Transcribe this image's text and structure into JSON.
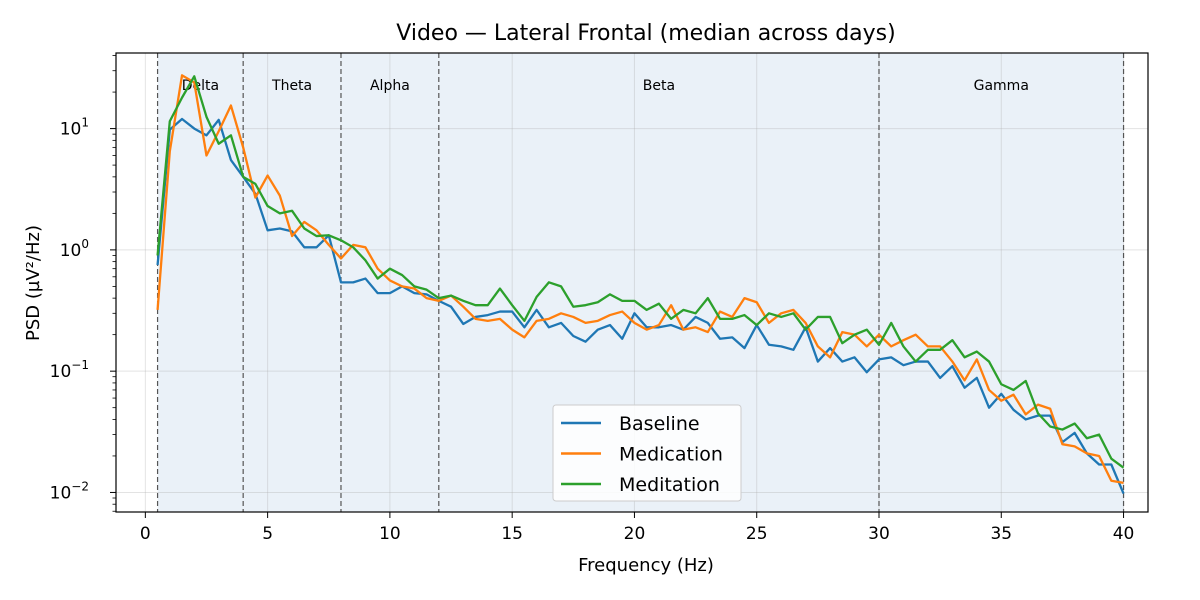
{
  "chart_data": {
    "type": "line",
    "title": "Video — Lateral Frontal  (median across days)",
    "xlabel": "Frequency (Hz)",
    "ylabel": "PSD (µV²/Hz)",
    "xlim": [
      -1.2,
      41.0
    ],
    "ylim": [
      0.0069,
      42
    ],
    "yscale": "log",
    "grid": true,
    "legend_position": "lower-center",
    "x_ticks": [
      0,
      5,
      10,
      15,
      20,
      25,
      30,
      35,
      40
    ],
    "x_tick_labels": [
      "0",
      "5",
      "10",
      "15",
      "20",
      "25",
      "30",
      "35",
      "40"
    ],
    "y_ticks": [
      0.01,
      0.1,
      1,
      10
    ],
    "y_tick_labels": [
      {
        "base": "10",
        "exp": "−2"
      },
      {
        "base": "10",
        "exp": "−1"
      },
      {
        "base": "10",
        "exp": "0"
      },
      {
        "base": "10",
        "exp": "1"
      }
    ],
    "band_shading_color": "#eaf1f8",
    "bands": [
      {
        "name": "Delta",
        "start": 0.5,
        "end": 4
      },
      {
        "name": "Theta",
        "start": 4,
        "end": 8
      },
      {
        "name": "Alpha",
        "start": 8,
        "end": 12
      },
      {
        "name": "Beta",
        "start": 12,
        "end": 30
      },
      {
        "name": "Gamma",
        "start": 30,
        "end": 40
      }
    ],
    "band_boundaries": [
      0.5,
      4,
      8,
      12,
      30,
      40
    ],
    "x": [
      0.5,
      1,
      1.5,
      2,
      2.5,
      3,
      3.5,
      4,
      4.5,
      5,
      5.5,
      6,
      6.5,
      7,
      7.5,
      8,
      8.5,
      9,
      9.5,
      10,
      10.5,
      11,
      11.5,
      12,
      12.5,
      13,
      13.5,
      14,
      14.5,
      15,
      15.5,
      16,
      16.5,
      17,
      17.5,
      18,
      18.5,
      19,
      19.5,
      20,
      20.5,
      21,
      21.5,
      22,
      22.5,
      23,
      23.5,
      24,
      24.5,
      25,
      25.5,
      26,
      26.5,
      27,
      27.5,
      28,
      28.5,
      29,
      29.5,
      30,
      30.5,
      31,
      31.5,
      32,
      32.5,
      33,
      33.5,
      34,
      34.5,
      35,
      35.5,
      36,
      36.5,
      37,
      37.5,
      38,
      38.5,
      39,
      39.5,
      40
    ],
    "series": [
      {
        "name": "Baseline",
        "color": "#1f77b4",
        "values": [
          0.75,
          9.8,
          12.0,
          10.0,
          8.8,
          11.8,
          5.5,
          4.0,
          2.9,
          1.45,
          1.5,
          1.42,
          1.05,
          1.05,
          1.32,
          0.54,
          0.54,
          0.58,
          0.44,
          0.44,
          0.5,
          0.44,
          0.43,
          0.38,
          0.34,
          0.245,
          0.28,
          0.29,
          0.31,
          0.31,
          0.23,
          0.32,
          0.23,
          0.25,
          0.195,
          0.175,
          0.22,
          0.24,
          0.185,
          0.3,
          0.23,
          0.23,
          0.24,
          0.22,
          0.28,
          0.25,
          0.185,
          0.19,
          0.155,
          0.24,
          0.165,
          0.16,
          0.15,
          0.23,
          0.12,
          0.155,
          0.12,
          0.13,
          0.098,
          0.125,
          0.13,
          0.112,
          0.12,
          0.12,
          0.088,
          0.11,
          0.073,
          0.088,
          0.05,
          0.065,
          0.048,
          0.04,
          0.043,
          0.043,
          0.026,
          0.031,
          0.021,
          0.017,
          0.017,
          0.0098
        ]
      },
      {
        "name": "Medication",
        "color": "#ff7f0e",
        "values": [
          0.32,
          6.5,
          27.5,
          24.0,
          6.0,
          9.5,
          15.5,
          7.0,
          2.7,
          4.1,
          2.8,
          1.3,
          1.7,
          1.45,
          1.1,
          0.85,
          1.1,
          1.05,
          0.7,
          0.56,
          0.5,
          0.48,
          0.4,
          0.38,
          0.42,
          0.34,
          0.27,
          0.26,
          0.27,
          0.22,
          0.19,
          0.26,
          0.27,
          0.3,
          0.28,
          0.25,
          0.26,
          0.29,
          0.31,
          0.25,
          0.22,
          0.24,
          0.35,
          0.22,
          0.23,
          0.21,
          0.31,
          0.28,
          0.4,
          0.37,
          0.25,
          0.3,
          0.32,
          0.25,
          0.16,
          0.13,
          0.21,
          0.2,
          0.16,
          0.2,
          0.16,
          0.18,
          0.2,
          0.16,
          0.16,
          0.12,
          0.084,
          0.125,
          0.07,
          0.057,
          0.064,
          0.044,
          0.053,
          0.049,
          0.025,
          0.024,
          0.021,
          0.02,
          0.0125,
          0.012
        ]
      },
      {
        "name": "Meditation",
        "color": "#2ca02c",
        "values": [
          0.9,
          11.5,
          18.0,
          27.0,
          12.5,
          7.5,
          8.8,
          4.0,
          3.5,
          2.3,
          2.0,
          2.1,
          1.5,
          1.3,
          1.32,
          1.2,
          1.05,
          0.82,
          0.58,
          0.7,
          0.62,
          0.5,
          0.47,
          0.4,
          0.42,
          0.38,
          0.35,
          0.35,
          0.48,
          0.35,
          0.26,
          0.41,
          0.54,
          0.5,
          0.34,
          0.35,
          0.37,
          0.43,
          0.38,
          0.38,
          0.32,
          0.36,
          0.27,
          0.32,
          0.3,
          0.4,
          0.27,
          0.27,
          0.29,
          0.24,
          0.3,
          0.28,
          0.3,
          0.22,
          0.28,
          0.28,
          0.17,
          0.2,
          0.22,
          0.165,
          0.25,
          0.16,
          0.12,
          0.15,
          0.15,
          0.18,
          0.13,
          0.145,
          0.12,
          0.078,
          0.07,
          0.083,
          0.045,
          0.035,
          0.033,
          0.037,
          0.028,
          0.03,
          0.019,
          0.016
        ]
      }
    ]
  }
}
